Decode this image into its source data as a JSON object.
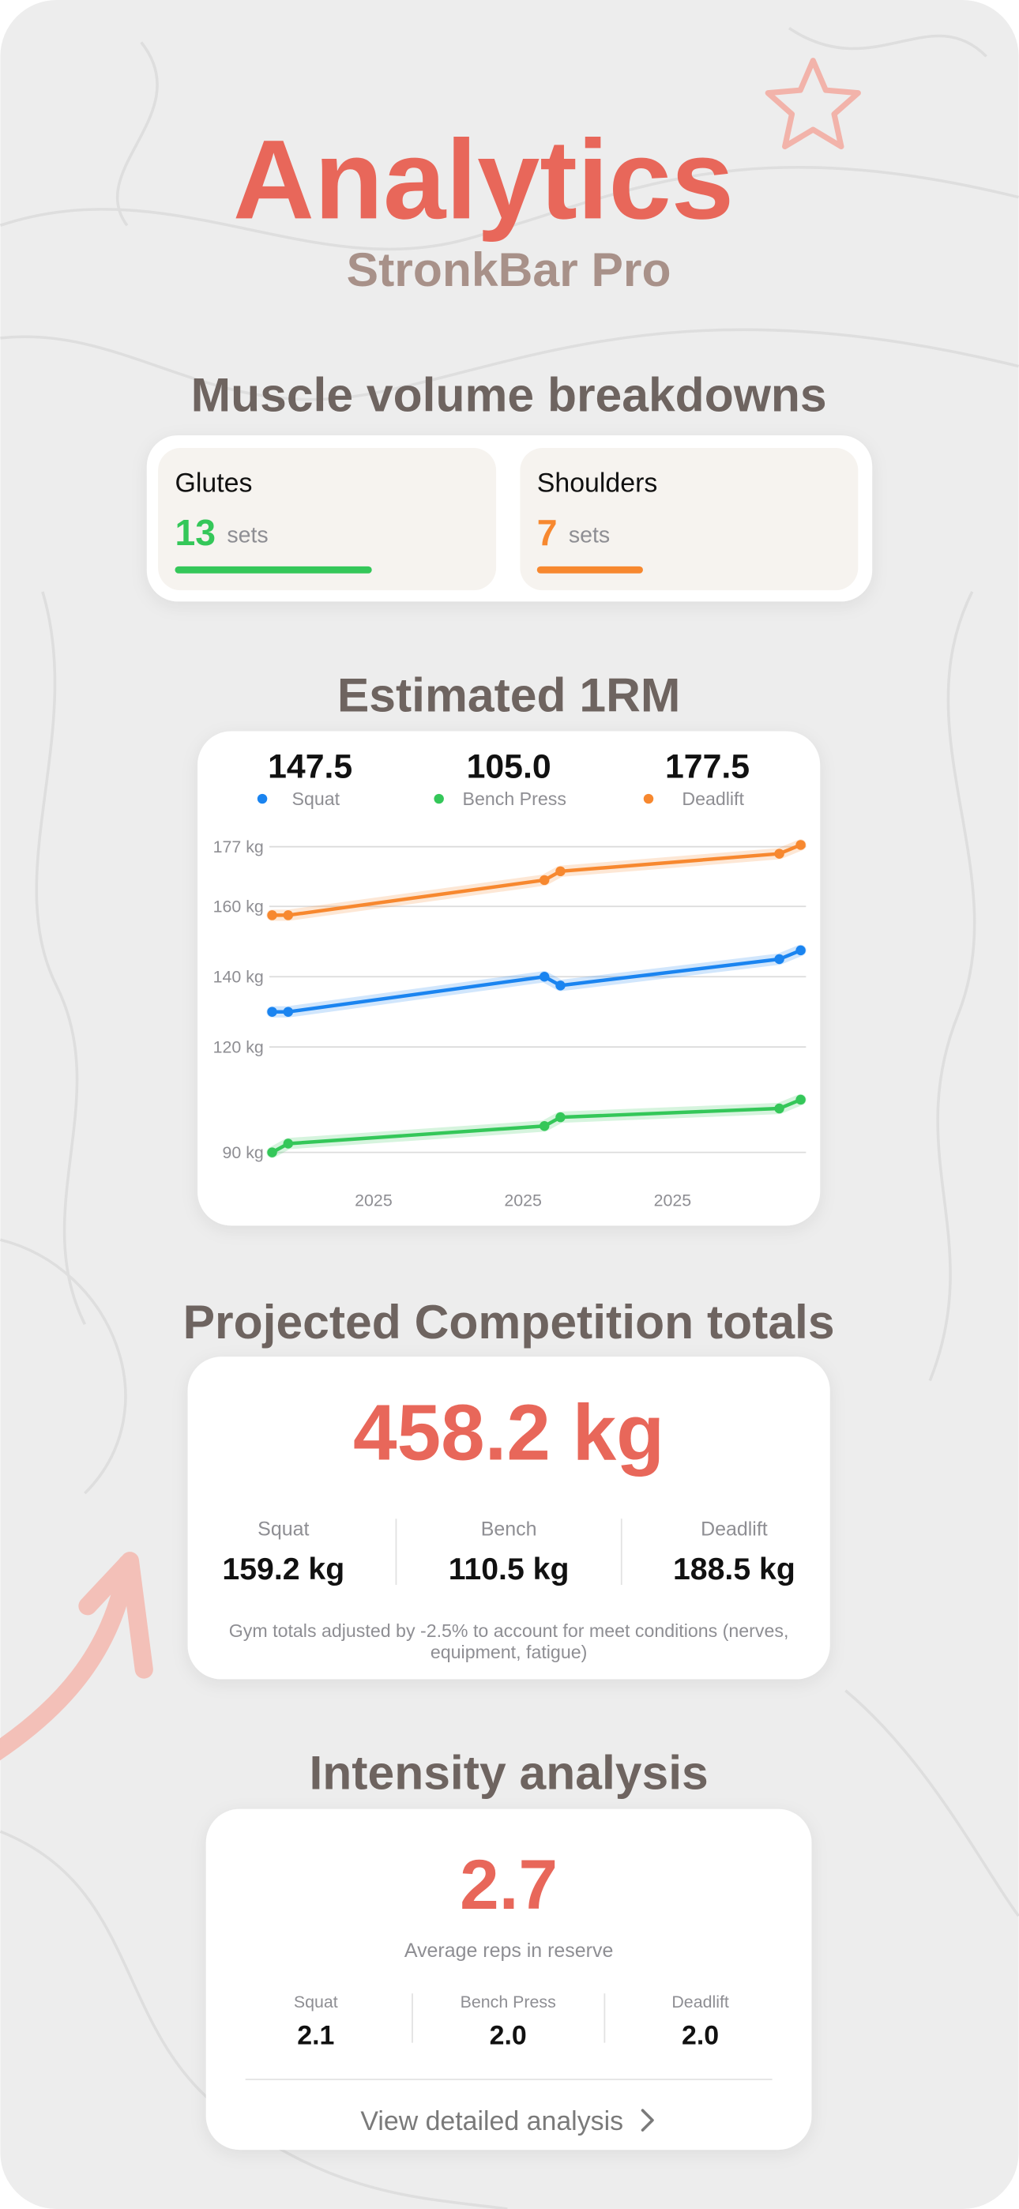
{
  "header": {
    "title": "Analytics",
    "subtitle": "StronkBar Pro"
  },
  "muscle_volume": {
    "title": "Muscle volume breakdowns",
    "muscles": [
      {
        "name": "Glutes",
        "sets": 13,
        "unit": "sets",
        "color": "#34c759"
      },
      {
        "name": "Shoulders",
        "sets": 7,
        "unit": "sets",
        "color": "#f7882f"
      }
    ]
  },
  "chart_data": {
    "type": "line",
    "title": "Estimated 1RM",
    "x": [
      0,
      3,
      51,
      54,
      95,
      99
    ],
    "xlim": [
      0,
      100
    ],
    "xticks": [
      {
        "value": 19,
        "label": "2025"
      },
      {
        "value": 47,
        "label": "2025"
      },
      {
        "value": 75,
        "label": "2025"
      }
    ],
    "ylim": [
      90,
      177
    ],
    "yticks": [
      {
        "value": 177,
        "label": "177 kg"
      },
      {
        "value": 160,
        "label": "160 kg"
      },
      {
        "value": 140,
        "label": "140 kg"
      },
      {
        "value": 120,
        "label": "120 kg"
      },
      {
        "value": 90,
        "label": "90 kg"
      }
    ],
    "grid": true,
    "series": [
      {
        "name": "Squat",
        "color": "#1a84f0",
        "values": [
          130,
          130,
          140,
          137.5,
          145,
          147.5
        ],
        "current": 147.5
      },
      {
        "name": "Bench Press",
        "color": "#34c759",
        "values": [
          90,
          92.5,
          97.5,
          100,
          102.5,
          105
        ],
        "current": {
          "value": 105,
          "label": "105.0"
        }
      },
      {
        "name": "Deadlift",
        "color": "#f7882f",
        "values": [
          157.5,
          157.5,
          167.5,
          170,
          175,
          177.5
        ],
        "current": 177.5
      }
    ]
  },
  "competition": {
    "title": "Projected Competition totals",
    "total": {
      "value": 458.2,
      "label": "458.2 kg"
    },
    "lifts": [
      {
        "name": "Squat",
        "value": {
          "value": 159.2,
          "label": "159.2 kg"
        }
      },
      {
        "name": "Bench",
        "value": {
          "value": 110.5,
          "label": "110.5 kg"
        }
      },
      {
        "name": "Deadlift",
        "value": {
          "value": 188.5,
          "label": "188.5 kg"
        }
      }
    ],
    "note": "Gym totals adjusted by -2.5% to account for meet conditions (nerves, equipment, fatigue)"
  },
  "intensity": {
    "title": "Intensity analysis",
    "average": 2.7,
    "average_label": "Average reps in reserve",
    "lifts": [
      {
        "name": "Squat",
        "value": 2.1
      },
      {
        "name": "Bench Press",
        "value": {
          "value": 2,
          "label": "2.0"
        }
      },
      {
        "name": "Deadlift",
        "value": {
          "value": 2,
          "label": "2.0"
        }
      }
    ],
    "link": "View detailed analysis"
  }
}
